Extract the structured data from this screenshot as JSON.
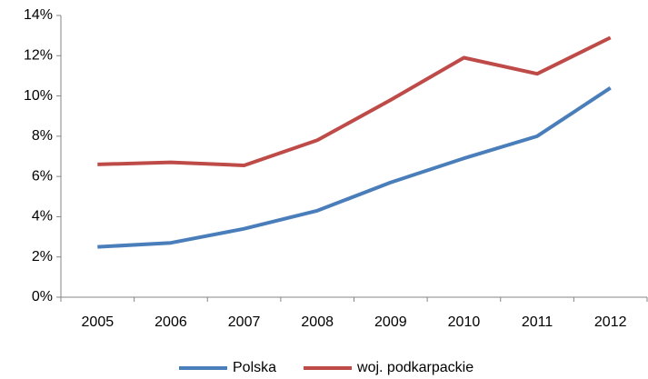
{
  "chart_data": {
    "type": "line",
    "categories": [
      "2005",
      "2006",
      "2007",
      "2008",
      "2009",
      "2010",
      "2011",
      "2012"
    ],
    "series": [
      {
        "name": "Polska",
        "color": "#4a7ebb",
        "values": [
          2.5,
          2.7,
          3.4,
          4.3,
          5.7,
          6.9,
          8.0,
          10.4
        ]
      },
      {
        "name": "woj. podkarpackie",
        "color": "#be4b48",
        "values": [
          6.6,
          6.7,
          6.55,
          7.8,
          9.8,
          11.9,
          11.1,
          12.9
        ]
      }
    ],
    "ylim": [
      0,
      14
    ],
    "yticks": [
      {
        "value": 0,
        "label": "0%"
      },
      {
        "value": 2,
        "label": "2%"
      },
      {
        "value": 4,
        "label": "4%"
      },
      {
        "value": 6,
        "label": "6%"
      },
      {
        "value": 8,
        "label": "8%"
      },
      {
        "value": 10,
        "label": "10%"
      },
      {
        "value": 12,
        "label": "12%"
      },
      {
        "value": 14,
        "label": "14%"
      }
    ],
    "grid": false,
    "legend": "bottom"
  }
}
